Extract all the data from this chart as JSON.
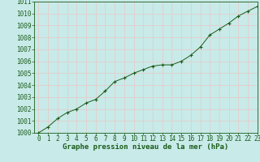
{
  "x": [
    0,
    1,
    2,
    3,
    4,
    5,
    6,
    7,
    8,
    9,
    10,
    11,
    12,
    13,
    14,
    15,
    16,
    17,
    18,
    19,
    20,
    21,
    22,
    23
  ],
  "y": [
    1000.0,
    1000.5,
    1001.2,
    1001.7,
    1002.0,
    1002.5,
    1002.8,
    1003.5,
    1004.3,
    1004.6,
    1005.0,
    1005.3,
    1005.6,
    1005.7,
    1005.7,
    1006.0,
    1006.5,
    1007.2,
    1008.2,
    1008.7,
    1009.2,
    1009.8,
    1010.2,
    1010.6
  ],
  "xlabel": "Graphe pression niveau de la mer (hPa)",
  "ylim": [
    1000,
    1011
  ],
  "xlim": [
    -0.5,
    23
  ],
  "yticks": [
    1000,
    1001,
    1002,
    1003,
    1004,
    1005,
    1006,
    1007,
    1008,
    1009,
    1010,
    1011
  ],
  "xticks": [
    0,
    1,
    2,
    3,
    4,
    5,
    6,
    7,
    8,
    9,
    10,
    11,
    12,
    13,
    14,
    15,
    16,
    17,
    18,
    19,
    20,
    21,
    22,
    23
  ],
  "line_color": "#1a5c1a",
  "marker_color": "#1a5c1a",
  "bg_color": "#c8eae8",
  "grid_color": "#e8c8c8",
  "text_color": "#1a5c1a",
  "label_fontsize": 6.5,
  "tick_fontsize": 5.5
}
